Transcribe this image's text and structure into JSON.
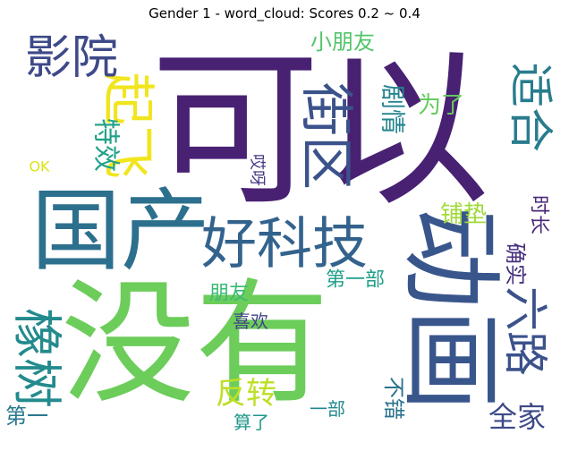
{
  "chart_data": {
    "type": "word_cloud",
    "title": "Gender 1 - word_cloud: Scores 0.2 ~ 0.4",
    "words": [
      {
        "text": "可以",
        "weight": 1.0,
        "color": "#482173"
      },
      {
        "text": "没有",
        "weight": 0.95,
        "color": "#6ccd5a"
      },
      {
        "text": "动画",
        "weight": 0.7,
        "color": "#39568c"
      },
      {
        "text": "国产",
        "weight": 0.62,
        "color": "#2d708e"
      },
      {
        "text": "好科技",
        "weight": 0.45,
        "color": "#33638d"
      },
      {
        "text": "街区",
        "weight": 0.42,
        "color": "#3b528b"
      },
      {
        "text": "起飞",
        "weight": 0.4,
        "color": "#f1e51d"
      },
      {
        "text": "橡树",
        "weight": 0.38,
        "color": "#238a8d"
      },
      {
        "text": "影院",
        "weight": 0.35,
        "color": "#3e4989"
      },
      {
        "text": "适合",
        "weight": 0.34,
        "color": "#287c8e"
      },
      {
        "text": "六路",
        "weight": 0.34,
        "color": "#3b528b"
      },
      {
        "text": "反转",
        "weight": 0.28,
        "color": "#bddf26"
      },
      {
        "text": "全家",
        "weight": 0.26,
        "color": "#3e4989"
      },
      {
        "text": "特效",
        "weight": 0.24,
        "color": "#1fa088"
      },
      {
        "text": "剧情",
        "weight": 0.22,
        "color": "#25848e"
      },
      {
        "text": "为了",
        "weight": 0.2,
        "color": "#65cb5e"
      },
      {
        "text": "铺垫",
        "weight": 0.2,
        "color": "#a0da39"
      },
      {
        "text": "确实",
        "weight": 0.19,
        "color": "#46307e"
      },
      {
        "text": "时长",
        "weight": 0.18,
        "color": "#482878"
      },
      {
        "text": "小朋友",
        "weight": 0.18,
        "color": "#52c569"
      },
      {
        "text": "第一部",
        "weight": 0.17,
        "color": "#1f9e89"
      },
      {
        "text": "朋友",
        "weight": 0.17,
        "color": "#3aba76"
      },
      {
        "text": "喜欢",
        "weight": 0.16,
        "color": "#414487"
      },
      {
        "text": "不错",
        "weight": 0.19,
        "color": "#2c728e"
      },
      {
        "text": "算了",
        "weight": 0.17,
        "color": "#1f988b"
      },
      {
        "text": "一部",
        "weight": 0.17,
        "color": "#23888e"
      },
      {
        "text": "第一",
        "weight": 0.19,
        "color": "#2a788e"
      },
      {
        "text": "哎呀",
        "weight": 0.16,
        "color": "#443983"
      },
      {
        "text": "OK",
        "weight": 0.14,
        "color": "#dde318"
      }
    ]
  }
}
